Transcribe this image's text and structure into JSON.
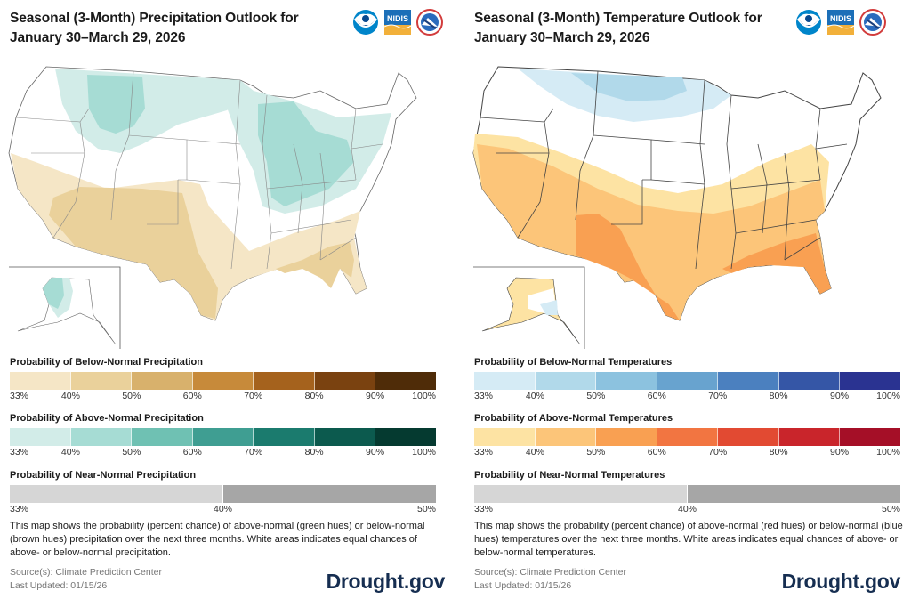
{
  "precipitation": {
    "title": "Seasonal (3-Month) Precipitation Outlook for January 30–March 29, 2026",
    "logos": [
      "noaa-logo",
      "nidis-logo",
      "nws-logo"
    ],
    "nidis_text": "NIDIS",
    "legend_below": {
      "title": "Probability of Below-Normal Precipitation",
      "ticks": [
        "33%",
        "40%",
        "50%",
        "60%",
        "70%",
        "80%",
        "90%",
        "100%"
      ],
      "colors": [
        "#f5e6c6",
        "#ead19b",
        "#d8b16c",
        "#c78a3a",
        "#a5621d",
        "#7a4210",
        "#4f2c08"
      ]
    },
    "legend_above": {
      "title": "Probability of Above-Normal Precipitation",
      "ticks": [
        "33%",
        "40%",
        "50%",
        "60%",
        "70%",
        "80%",
        "90%",
        "100%"
      ],
      "colors": [
        "#d2ece8",
        "#a6dcd4",
        "#6fc1b3",
        "#3f9e92",
        "#1b7b6e",
        "#0c5a4e",
        "#053a30"
      ]
    },
    "legend_near": {
      "title": "Probability of Near-Normal Precipitation",
      "ticks": [
        "33%",
        "40%",
        "50%"
      ],
      "colors": [
        "#d6d6d6",
        "#a6a6a6"
      ]
    },
    "description": "This map shows the probability (percent chance) of above-normal (green hues) or below-normal (brown hues) precipitation over the next three months. White areas indicates equal chances of above- or below-normal precipitation.",
    "source": "Source(s): Climate Prediction Center",
    "updated": "Last Updated: 01/15/26",
    "brand": "Drought.gov",
    "map_regions": [
      {
        "name": "northern-rockies-above",
        "category": "above",
        "probability": "33-40%"
      },
      {
        "name": "montana-above",
        "category": "above",
        "probability": "40-50%"
      },
      {
        "name": "great-lakes-ohio-valley-above",
        "category": "above",
        "probability": "33-40%"
      },
      {
        "name": "ohio-valley-above-core",
        "category": "above",
        "probability": "40-50%"
      },
      {
        "name": "southern-tier-below",
        "category": "below",
        "probability": "33-40%"
      },
      {
        "name": "southwest-texas-below",
        "category": "below",
        "probability": "40-50%"
      },
      {
        "name": "southeast-below",
        "category": "below",
        "probability": "40-50%"
      },
      {
        "name": "alaska-west-above",
        "category": "above",
        "probability": "33-50%"
      }
    ]
  },
  "temperature": {
    "title": "Seasonal (3-Month) Temperature Outlook for January 30–March 29, 2026",
    "logos": [
      "noaa-logo",
      "nidis-logo",
      "nws-logo"
    ],
    "nidis_text": "NIDIS",
    "legend_below": {
      "title": "Probability of Below-Normal Temperatures",
      "ticks": [
        "33%",
        "40%",
        "50%",
        "60%",
        "70%",
        "80%",
        "90%",
        "100%"
      ],
      "colors": [
        "#d5ebf5",
        "#b1d9ea",
        "#8cc2df",
        "#68a3cf",
        "#4b80bf",
        "#3556a6",
        "#2a3391"
      ]
    },
    "legend_above": {
      "title": "Probability of Above-Normal Temperatures",
      "ticks": [
        "33%",
        "40%",
        "50%",
        "60%",
        "70%",
        "80%",
        "90%",
        "100%"
      ],
      "colors": [
        "#fde3a3",
        "#fcc579",
        "#f9a052",
        "#f27541",
        "#e24a32",
        "#c9252b",
        "#a50f27"
      ]
    },
    "legend_near": {
      "title": "Probability of Near-Normal Temperatures",
      "ticks": [
        "33%",
        "40%",
        "50%"
      ],
      "colors": [
        "#d6d6d6",
        "#a6a6a6"
      ]
    },
    "description": "This map shows the probability (percent chance) of above-normal (red hues) or below-normal (blue hues) temperatures over the next three months. White areas indicates equal chances of above- or below-normal temperatures.",
    "source": "Source(s): Climate Prediction Center",
    "updated": "Last Updated: 01/15/26",
    "brand": "Drought.gov",
    "map_regions": [
      {
        "name": "northern-tier-below",
        "category": "below",
        "probability": "33-40%"
      },
      {
        "name": "north-dakota-below",
        "category": "below",
        "probability": "40-50%"
      },
      {
        "name": "southern-tier-above",
        "category": "above",
        "probability": "33-40%"
      },
      {
        "name": "southwest-above",
        "category": "above",
        "probability": "40-50%"
      },
      {
        "name": "gulf-coast-above",
        "category": "above",
        "probability": "50-60%"
      },
      {
        "name": "alaska-above",
        "category": "above",
        "probability": "33-40%"
      },
      {
        "name": "alaska-southeast-below",
        "category": "below",
        "probability": "33-40%"
      }
    ]
  }
}
